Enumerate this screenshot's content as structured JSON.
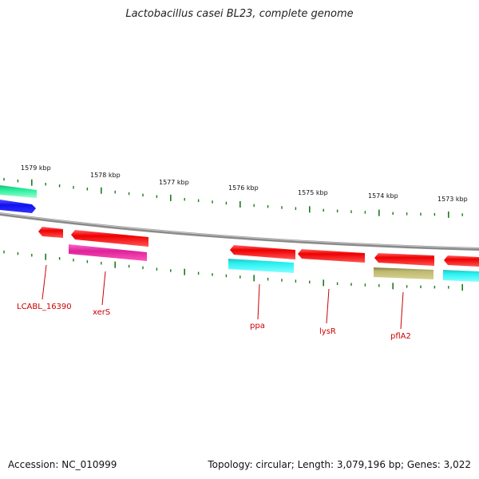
{
  "title": "Lactobacillus casei BL23, complete genome",
  "footer": {
    "accession": "Accession: NC_010999",
    "summary": "Topology: circular; Length: 3,079,196 bp; Genes: 3,022"
  },
  "scale_labels": [
    "1579 kbp",
    "1578 kbp",
    "1577 kbp",
    "1576 kbp",
    "1575 kbp",
    "1574 kbp",
    "1573 kbp"
  ],
  "gene_labels": [
    "LCABL_16390",
    "xerS",
    "ppa",
    "lysR",
    "pflA2"
  ],
  "colors": {
    "backbone": "#8a8a8a",
    "ticks": "#1a7a1a",
    "red": "#ee1111",
    "magenta": "#ee22aa",
    "cyan": "#22e8ee",
    "olive": "#b5b06a",
    "green": "#22ee99",
    "blue": "#1111ee",
    "label": "#cc0000"
  }
}
